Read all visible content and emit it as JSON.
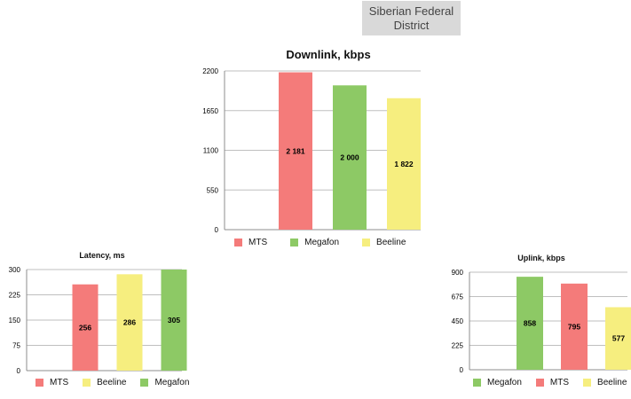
{
  "region": {
    "line1": "Siberian Federal",
    "line2": "District"
  },
  "colors": {
    "MTS": "#f47b7a",
    "Megafon": "#8dc965",
    "Beeline": "#f6ee7f",
    "grid": "#bfbfbf",
    "axis": "#8c8c8c"
  },
  "chart_data": [
    {
      "id": "downlink",
      "type": "bar",
      "title": "Downlink, kbps",
      "categories": [
        "MTS",
        "Megafon",
        "Beeline"
      ],
      "values": [
        2181,
        2000,
        1822
      ],
      "value_labels": [
        "2 181",
        "2 000",
        "1 822"
      ],
      "ylim": [
        0,
        2200
      ],
      "yticks": [
        0,
        550,
        1100,
        1650,
        2200
      ],
      "ytick_labels": [
        "0",
        "550",
        "1100",
        "1650",
        "2200"
      ],
      "grid": true,
      "legend": [
        "MTS",
        "Megafon",
        "Beeline"
      ],
      "legend_position": "bottom"
    },
    {
      "id": "latency",
      "type": "bar",
      "title": "Latency, ms",
      "categories": [
        "MTS",
        "Beeline",
        "Megafon"
      ],
      "values": [
        256,
        286,
        305
      ],
      "value_labels": [
        "256",
        "286",
        "305"
      ],
      "ylim": [
        0,
        300
      ],
      "yticks": [
        0,
        75,
        150,
        225,
        300
      ],
      "ytick_labels": [
        "0",
        "75",
        "150",
        "225",
        "300"
      ],
      "grid": true,
      "legend": [
        "MTS",
        "Beeline",
        "Megafon"
      ],
      "legend_position": "bottom"
    },
    {
      "id": "uplink",
      "type": "bar",
      "title": "Uplink, kbps",
      "categories": [
        "Megafon",
        "MTS",
        "Beeline"
      ],
      "values": [
        858,
        795,
        577
      ],
      "value_labels": [
        "858",
        "795",
        "577"
      ],
      "ylim": [
        0,
        900
      ],
      "yticks": [
        0,
        225,
        450,
        675,
        900
      ],
      "ytick_labels": [
        "0",
        "225",
        "450",
        "675",
        "900"
      ],
      "grid": true,
      "legend": [
        "Megafon",
        "MTS",
        "Beeline"
      ],
      "legend_position": "bottom"
    }
  ]
}
